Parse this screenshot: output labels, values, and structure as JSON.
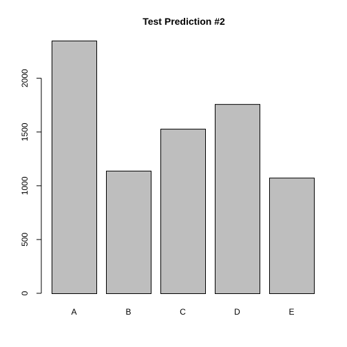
{
  "chart_data": {
    "type": "bar",
    "title": "Test Prediction #2",
    "xlabel": "",
    "ylabel": "",
    "categories": [
      "A",
      "B",
      "C",
      "D",
      "E"
    ],
    "values": [
      2350,
      1140,
      1530,
      1760,
      1075
    ],
    "ylim": [
      0,
      2350
    ],
    "yticks": [
      0,
      500,
      1000,
      1500,
      2000
    ],
    "grid": false,
    "bar_color": "#bebebe"
  }
}
